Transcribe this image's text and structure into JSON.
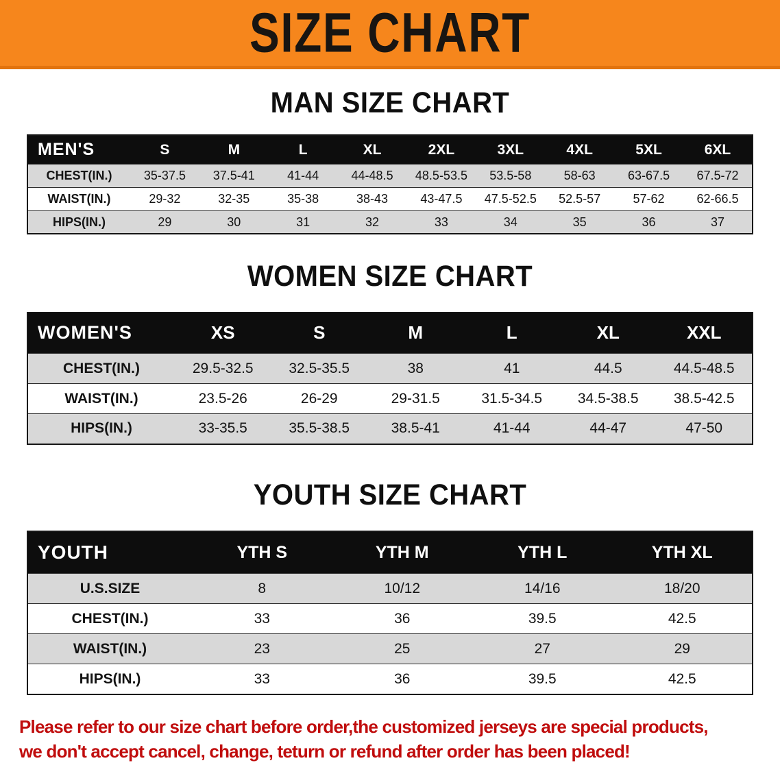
{
  "theme": {
    "banner_bg": "#F6861C",
    "banner_text": "#181512",
    "table_header_bg": "#0D0D0D",
    "table_header_text": "#FFFFFF",
    "row_alt_bg": "#D8D8D8",
    "notice_color": "#C00D0D"
  },
  "banner": {
    "title": "SIZE CHART"
  },
  "sections": [
    {
      "id": "men",
      "heading": "MAN SIZE CHART",
      "table": {
        "header": [
          "MEN'S",
          "S",
          "M",
          "L",
          "XL",
          "2XL",
          "3XL",
          "4XL",
          "5XL",
          "6XL"
        ],
        "rows": [
          [
            "CHEST(IN.)",
            "35-37.5",
            "37.5-41",
            "41-44",
            "44-48.5",
            "48.5-53.5",
            "53.5-58",
            "58-63",
            "63-67.5",
            "67.5-72"
          ],
          [
            "WAIST(IN.)",
            "29-32",
            "32-35",
            "35-38",
            "38-43",
            "43-47.5",
            "47.5-52.5",
            "52.5-57",
            "57-62",
            "62-66.5"
          ],
          [
            "HIPS(IN.)",
            "29",
            "30",
            "31",
            "32",
            "33",
            "34",
            "35",
            "36",
            "37"
          ]
        ]
      }
    },
    {
      "id": "women",
      "heading": "WOMEN SIZE CHART",
      "table": {
        "header": [
          "WOMEN'S",
          "XS",
          "S",
          "M",
          "L",
          "XL",
          "XXL"
        ],
        "rows": [
          [
            "CHEST(IN.)",
            "29.5-32.5",
            "32.5-35.5",
            "38",
            "41",
            "44.5",
            "44.5-48.5"
          ],
          [
            "WAIST(IN.)",
            "23.5-26",
            "26-29",
            "29-31.5",
            "31.5-34.5",
            "34.5-38.5",
            "38.5-42.5"
          ],
          [
            "HIPS(IN.)",
            "33-35.5",
            "35.5-38.5",
            "38.5-41",
            "41-44",
            "44-47",
            "47-50"
          ]
        ]
      }
    },
    {
      "id": "youth",
      "heading": "YOUTH SIZE CHART",
      "table": {
        "header": [
          "YOUTH",
          "YTH S",
          "YTH M",
          "YTH L",
          "YTH XL"
        ],
        "rows": [
          [
            "U.S.SIZE",
            "8",
            "10/12",
            "14/16",
            "18/20"
          ],
          [
            "CHEST(IN.)",
            "33",
            "36",
            "39.5",
            "42.5"
          ],
          [
            "WAIST(IN.)",
            "23",
            "25",
            "27",
            "29"
          ],
          [
            "HIPS(IN.)",
            "33",
            "36",
            "39.5",
            "42.5"
          ]
        ]
      }
    }
  ],
  "footer": {
    "lines": [
      "Please refer to our size chart before order,the customized jerseys are special products,",
      "we don't accept cancel, change, teturn or refund after order has been placed!"
    ]
  }
}
